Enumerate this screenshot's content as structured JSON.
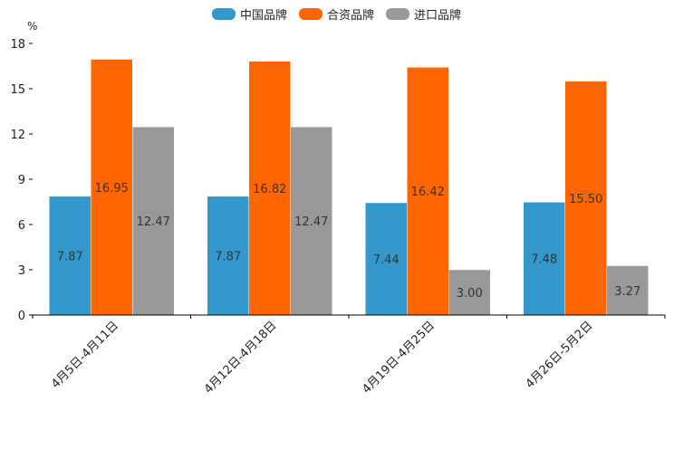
{
  "chart_data": {
    "type": "bar",
    "unit": "%",
    "categories": [
      "4月5日-4月11日",
      "4月12日-4月18日",
      "4月19日-4月25日",
      "4月26日-5月2日"
    ],
    "series": [
      {
        "name": "中国品牌",
        "color": "#3399cc",
        "values": [
          7.87,
          7.87,
          7.44,
          7.48
        ],
        "labels": [
          "7.87",
          "7.87",
          "7.44",
          "7.48"
        ]
      },
      {
        "name": "合资品牌",
        "color": "#ff6600",
        "values": [
          16.95,
          16.82,
          16.42,
          15.5
        ],
        "labels": [
          "16.95",
          "16.82",
          "16.42",
          "15.50"
        ]
      },
      {
        "name": "进口品牌",
        "color": "#999999",
        "values": [
          12.47,
          12.47,
          3.0,
          3.27
        ],
        "labels": [
          "12.47",
          "12.47",
          "3.00",
          "3.27"
        ]
      }
    ],
    "yticks": [
      "0",
      "3",
      "6",
      "9",
      "12",
      "15",
      "18"
    ],
    "ylim": [
      0,
      18
    ],
    "legend_position": "top-center"
  }
}
